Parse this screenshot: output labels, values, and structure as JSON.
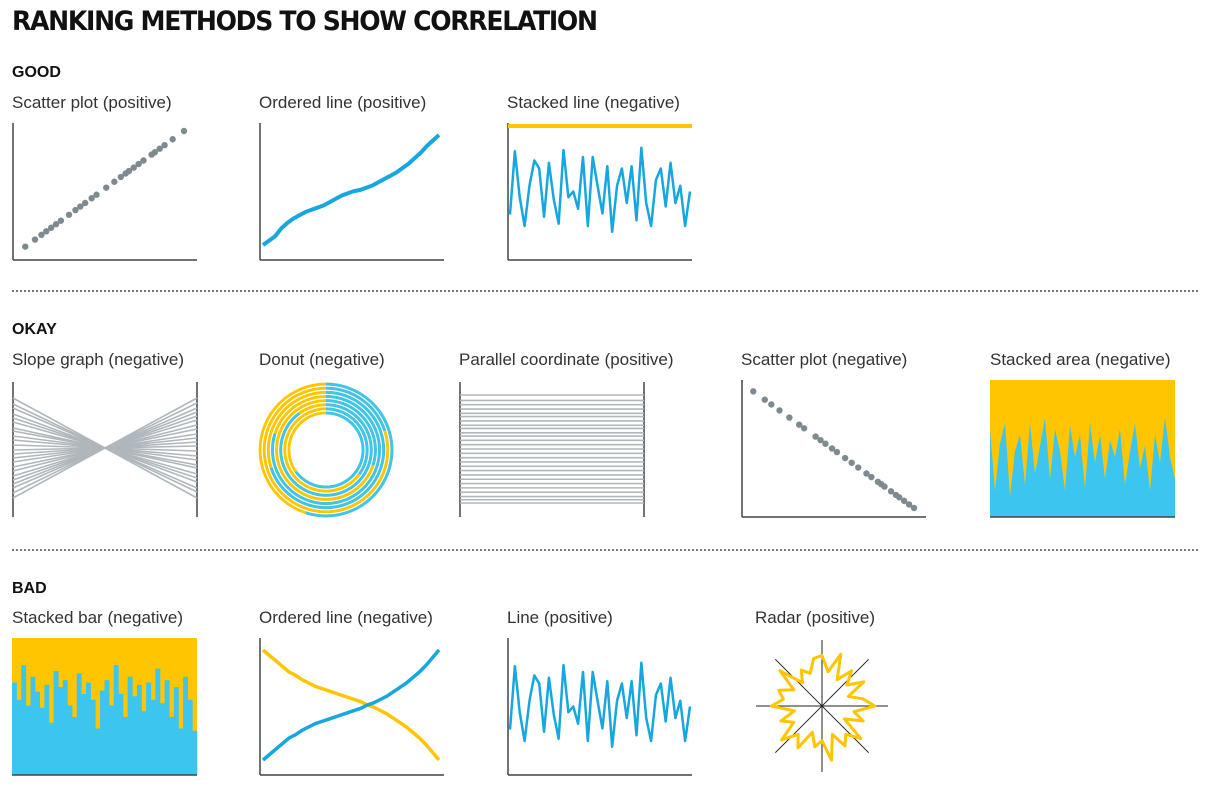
{
  "title": "RANKING METHODS TO SHOW CORRELATION",
  "colors": {
    "blue": "#16a7e1",
    "cyan": "#3cc5ef",
    "yellow": "#ffc500",
    "gray": "#7f8a90",
    "lightgray": "#b0b7bc",
    "axis": "#444444"
  },
  "sections": [
    {
      "label": "GOOD",
      "panels": [
        {
          "label": "Scatter plot (positive)"
        },
        {
          "label": "Ordered line (positive)"
        },
        {
          "label": "Stacked line (negative)"
        }
      ]
    },
    {
      "label": "OKAY",
      "panels": [
        {
          "label": "Slope graph (negative)"
        },
        {
          "label": "Donut (negative)"
        },
        {
          "label": "Parallel coordinate (positive)"
        },
        {
          "label": "Scatter plot (negative)"
        },
        {
          "label": "Stacked area (negative)"
        }
      ]
    },
    {
      "label": "BAD",
      "panels": [
        {
          "label": "Stacked bar (negative)"
        },
        {
          "label": "Ordered line (negative)"
        },
        {
          "label": "Line (positive)"
        },
        {
          "label": "Radar (positive)"
        }
      ]
    }
  ],
  "chart_data": [
    {
      "type": "scatter",
      "correlation": "positive",
      "x": [
        0.02,
        0.08,
        0.12,
        0.15,
        0.18,
        0.21,
        0.24,
        0.29,
        0.33,
        0.36,
        0.39,
        0.43,
        0.46,
        0.52,
        0.57,
        0.61,
        0.64,
        0.66,
        0.69,
        0.72,
        0.75,
        0.8,
        0.82,
        0.85,
        0.88,
        0.93,
        1.0
      ]
    },
    {
      "type": "line",
      "variant": "ordered",
      "correlation": "positive",
      "y": [
        0.0,
        0.04,
        0.08,
        0.15,
        0.2,
        0.24,
        0.27,
        0.3,
        0.32,
        0.34,
        0.36,
        0.39,
        0.42,
        0.45,
        0.47,
        0.49,
        0.5,
        0.52,
        0.54,
        0.57,
        0.6,
        0.63,
        0.66,
        0.7,
        0.74,
        0.79,
        0.84,
        0.9,
        0.95,
        1.0
      ]
    },
    {
      "type": "line",
      "variant": "stacked",
      "correlation": "negative",
      "top_series": 1.0,
      "y": [
        0.3,
        0.85,
        0.45,
        0.2,
        0.55,
        0.77,
        0.7,
        0.28,
        0.75,
        0.43,
        0.22,
        0.86,
        0.45,
        0.5,
        0.35,
        0.8,
        0.2,
        0.8,
        0.55,
        0.31,
        0.72,
        0.15,
        0.55,
        0.7,
        0.4,
        0.72,
        0.25,
        0.88,
        0.4,
        0.2,
        0.6,
        0.7,
        0.37,
        0.75,
        0.4,
        0.55,
        0.2,
        0.5
      ]
    },
    {
      "type": "slope",
      "correlation": "negative",
      "left": [
        0.0,
        0.06,
        0.1,
        0.16,
        0.2,
        0.24,
        0.3,
        0.33,
        0.38,
        0.42,
        0.47,
        0.52,
        0.56,
        0.6,
        0.64,
        0.69,
        0.73,
        0.78,
        0.82,
        0.86,
        0.9,
        0.95,
        1.0
      ]
    },
    {
      "type": "donut",
      "correlation": "negative",
      "rings": [
        0.55,
        0.2,
        0.7,
        0.8,
        0.3,
        0.9,
        0.35,
        0.65
      ]
    },
    {
      "type": "parallel",
      "correlation": "positive",
      "y": [
        0.0,
        0.05,
        0.09,
        0.13,
        0.17,
        0.2,
        0.24,
        0.28,
        0.31,
        0.35,
        0.38,
        0.42,
        0.46,
        0.5,
        0.54,
        0.58,
        0.62,
        0.66,
        0.7,
        0.74,
        0.78,
        0.82,
        0.86,
        0.9,
        0.94,
        0.97,
        1.0
      ]
    },
    {
      "type": "scatter",
      "correlation": "negative",
      "x": [
        0.02,
        0.09,
        0.13,
        0.18,
        0.24,
        0.3,
        0.33,
        0.4,
        0.43,
        0.46,
        0.5,
        0.53,
        0.58,
        0.62,
        0.66,
        0.71,
        0.74,
        0.78,
        0.8,
        0.82,
        0.86,
        0.89,
        0.91,
        0.94,
        0.97,
        1.0
      ]
    },
    {
      "type": "area",
      "variant": "stacked",
      "correlation": "negative",
      "y": [
        0.75,
        0.2,
        0.62,
        0.8,
        0.15,
        0.55,
        0.7,
        0.25,
        0.8,
        0.35,
        0.6,
        0.85,
        0.3,
        0.75,
        0.55,
        0.2,
        0.78,
        0.5,
        0.7,
        0.22,
        0.8,
        0.45,
        0.7,
        0.3,
        0.65,
        0.5,
        0.75,
        0.25,
        0.55,
        0.8,
        0.4,
        0.6,
        0.2,
        0.7,
        0.45,
        0.85,
        0.5,
        0.3
      ]
    },
    {
      "type": "bar",
      "variant": "stacked",
      "correlation": "negative",
      "values": [
        0.7,
        0.55,
        0.85,
        0.5,
        0.75,
        0.62,
        0.48,
        0.68,
        0.35,
        0.8,
        0.66,
        0.72,
        0.5,
        0.4,
        0.78,
        0.6,
        0.7,
        0.55,
        0.3,
        0.63,
        0.72,
        0.5,
        0.85,
        0.6,
        0.4,
        0.75,
        0.58,
        0.68,
        0.45,
        0.7,
        0.55,
        0.82,
        0.52,
        0.72,
        0.4,
        0.66,
        0.3,
        0.75,
        0.55,
        0.28
      ]
    },
    {
      "type": "line",
      "variant": "ordered",
      "correlation": "negative",
      "y": [
        0.0,
        0.05,
        0.1,
        0.15,
        0.2,
        0.23,
        0.27,
        0.3,
        0.33,
        0.35,
        0.37,
        0.39,
        0.41,
        0.43,
        0.45,
        0.47,
        0.5,
        0.52,
        0.55,
        0.58,
        0.62,
        0.66,
        0.7,
        0.75,
        0.8,
        0.86,
        0.93,
        1.0
      ]
    },
    {
      "type": "line",
      "correlation": "positive",
      "y": [
        0.3,
        0.85,
        0.45,
        0.2,
        0.55,
        0.77,
        0.7,
        0.28,
        0.75,
        0.43,
        0.22,
        0.86,
        0.45,
        0.5,
        0.35,
        0.8,
        0.2,
        0.8,
        0.55,
        0.31,
        0.72,
        0.15,
        0.55,
        0.7,
        0.4,
        0.72,
        0.25,
        0.88,
        0.4,
        0.2,
        0.6,
        0.7,
        0.37,
        0.75,
        0.4,
        0.55,
        0.2,
        0.5
      ]
    },
    {
      "type": "radar",
      "correlation": "positive",
      "y": [
        0.9,
        0.55,
        1.0,
        0.45,
        0.8,
        0.5,
        0.85,
        0.4,
        0.7,
        0.95,
        0.5,
        0.75,
        0.35,
        0.9,
        0.6,
        0.8,
        0.45,
        1.0,
        0.55,
        0.7,
        0.4,
        0.85,
        0.6,
        0.95,
        0.5,
        0.75,
        0.4,
        0.9,
        0.65,
        0.8,
        0.5,
        1.0,
        0.45,
        0.7,
        0.55,
        0.85
      ]
    }
  ]
}
